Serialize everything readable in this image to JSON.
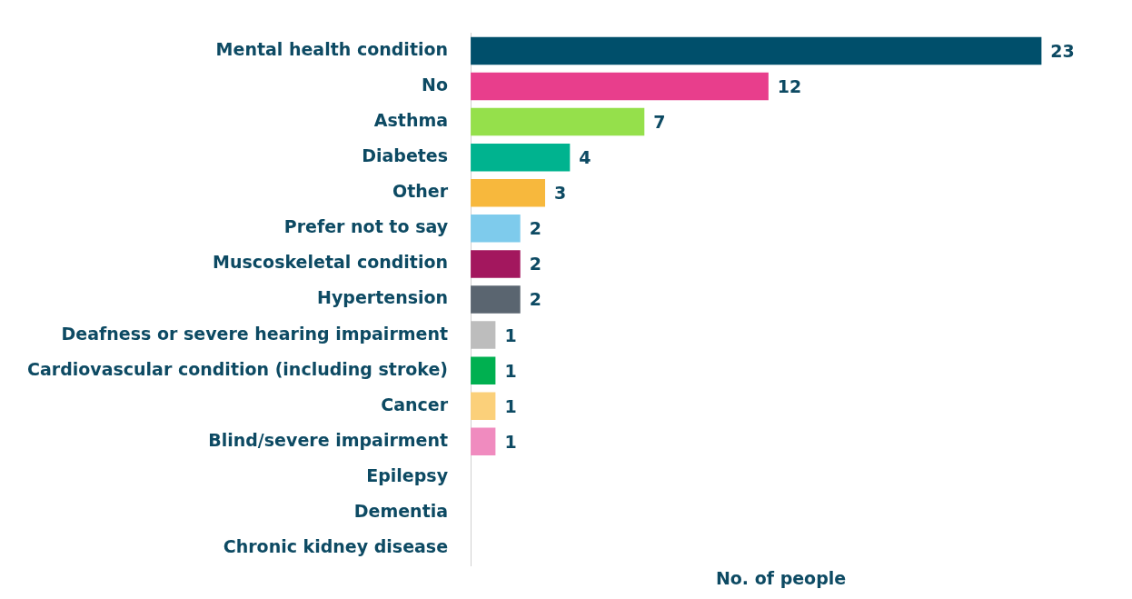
{
  "chart_data": {
    "type": "bar",
    "orientation": "horizontal",
    "xlabel": "No. of people",
    "categories": [
      "Mental health condition",
      "No",
      "Asthma",
      "Diabetes",
      "Other",
      "Prefer not to say",
      "Muscoskeletal condition",
      "Hypertension",
      "Deafness or severe hearing impairment",
      "Cardiovascular condition (including stroke)",
      "Cancer",
      "Blind/severe impairment",
      "Epilepsy",
      "Dementia",
      "Chronic kidney disease"
    ],
    "values": [
      23,
      12,
      7,
      4,
      3,
      2,
      2,
      2,
      1,
      1,
      1,
      1,
      0,
      0,
      0
    ],
    "value_labels": [
      "23",
      "12",
      "7",
      "4",
      "3",
      "2",
      "2",
      "2",
      "1",
      "1",
      "1",
      "1",
      null,
      null,
      null
    ],
    "colors": [
      "#004f6b",
      "#e83e8c",
      "#95e04b",
      "#00b38f",
      "#f7b83d",
      "#7ecbec",
      "#a3175e",
      "#5a6570",
      "#bdbdbd",
      "#00b050",
      "#fbd07a",
      "#f08bbf",
      "#cccccc",
      "#cccccc",
      "#cccccc"
    ],
    "tick_labels": "y",
    "grid": false,
    "legend": false
  }
}
